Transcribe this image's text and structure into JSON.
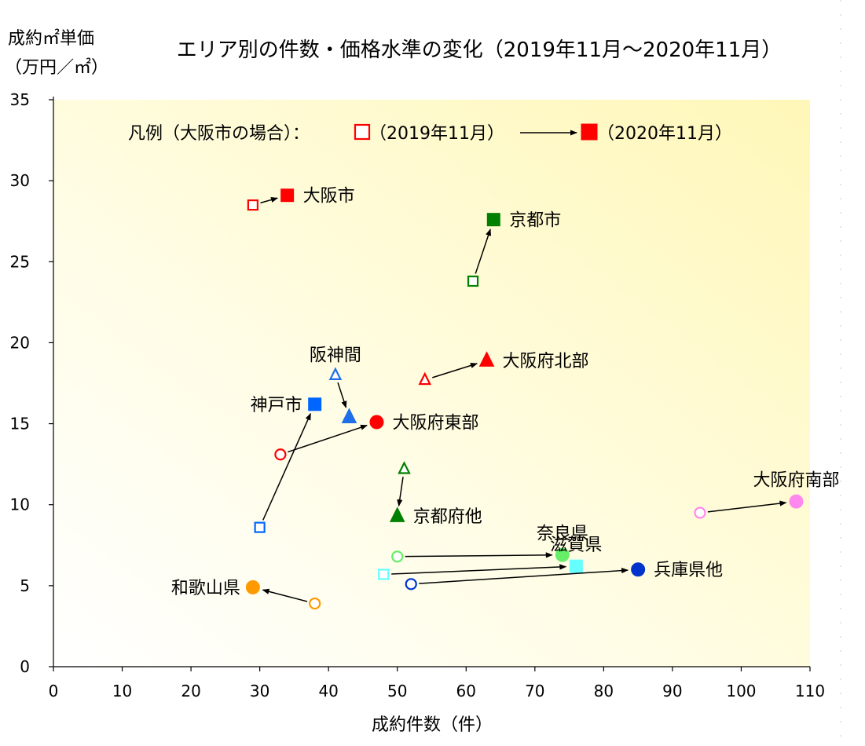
{
  "chart_data": {
    "type": "scatter",
    "title": "エリア別の件数・価格水準の変化（2019年11月～2020年11月）",
    "ylabel_line1": "成約㎡単価",
    "ylabel_line2": "（万円／㎡）",
    "xlabel": "成約件数（件）",
    "xlim": [
      0,
      110
    ],
    "ylim": [
      0,
      35
    ],
    "x_ticks": [
      0,
      10,
      20,
      30,
      40,
      50,
      60,
      70,
      80,
      90,
      100,
      110
    ],
    "y_ticks": [
      0,
      5,
      10,
      15,
      20,
      25,
      30,
      35
    ],
    "legend": {
      "prefix": "凡例（大阪市の場合）：",
      "from_label": "（2019年11月）",
      "to_label": "（2020年11月）",
      "color": "#ff0000"
    },
    "series": [
      {
        "name": "大阪市",
        "shape": "square",
        "color": "#ff0000",
        "from": [
          29,
          28.5
        ],
        "to": [
          34,
          29.1
        ],
        "label_pos": "right"
      },
      {
        "name": "京都市",
        "shape": "square",
        "color": "#008000",
        "from": [
          61,
          23.8
        ],
        "to": [
          64,
          27.6
        ],
        "label_pos": "right"
      },
      {
        "name": "大阪府北部",
        "shape": "triangle",
        "color": "#ff0000",
        "from": [
          54,
          17.7
        ],
        "to": [
          63,
          18.9
        ],
        "label_pos": "right"
      },
      {
        "name": "阪神間",
        "shape": "triangle",
        "color": "#1f6fe8",
        "from": [
          41,
          18.0
        ],
        "to": [
          43,
          15.4
        ],
        "label_pos": "above-left"
      },
      {
        "name": "神戸市",
        "shape": "square",
        "color": "#0066ff",
        "from": [
          30,
          8.6
        ],
        "to": [
          38,
          16.2
        ],
        "label_pos": "left"
      },
      {
        "name": "大阪府東部",
        "shape": "circle",
        "color": "#ff0000",
        "from": [
          33,
          13.1
        ],
        "to": [
          47,
          15.1
        ],
        "label_pos": "right"
      },
      {
        "name": "京都府他",
        "shape": "triangle",
        "color": "#008000",
        "from": [
          51,
          12.2
        ],
        "to": [
          50,
          9.3
        ],
        "label_pos": "right"
      },
      {
        "name": "大阪府南部",
        "shape": "circle",
        "color": "#ff88ee",
        "from": [
          94,
          9.5
        ],
        "to": [
          108,
          10.2
        ],
        "label_pos": "above"
      },
      {
        "name": "奈良県",
        "shape": "circle",
        "color": "#66ee66",
        "from": [
          50,
          6.8
        ],
        "to": [
          74,
          6.9
        ],
        "label_pos": "above"
      },
      {
        "name": "滋賀県",
        "shape": "square",
        "color": "#66ffff",
        "from": [
          48,
          5.7
        ],
        "to": [
          76,
          6.2
        ],
        "label_pos": "above"
      },
      {
        "name": "兵庫県他",
        "shape": "circle",
        "color": "#0033cc",
        "from": [
          52,
          5.1
        ],
        "to": [
          85,
          6.0
        ],
        "label_pos": "right"
      },
      {
        "name": "和歌山県",
        "shape": "circle",
        "color": "#ff9900",
        "from": [
          38,
          3.9
        ],
        "to": [
          29,
          4.9
        ],
        "label_pos": "left"
      }
    ]
  }
}
